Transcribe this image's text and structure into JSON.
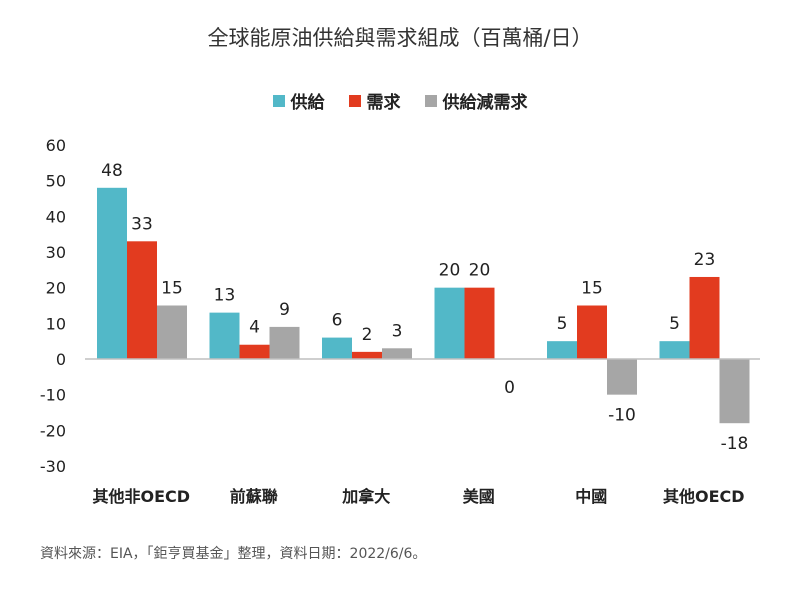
{
  "chart_data": {
    "type": "bar",
    "title": "全球能原油供給與需求組成（百萬桶/日）",
    "categories": [
      "其他非OECD",
      "前蘇聯",
      "加拿大",
      "美國",
      "中國",
      "其他OECD"
    ],
    "series": [
      {
        "name": "供給",
        "color": "#52B8C8",
        "values": [
          48,
          13,
          6,
          20,
          5,
          5
        ]
      },
      {
        "name": "需求",
        "color": "#E23B1F",
        "values": [
          33,
          4,
          2,
          20,
          15,
          23
        ]
      },
      {
        "name": "供給減需求",
        "color": "#A6A6A6",
        "values": [
          15,
          9,
          3,
          0,
          -10,
          -18
        ]
      }
    ],
    "ylim": [
      -30,
      60
    ],
    "yticks": [
      60,
      50,
      40,
      30,
      20,
      10,
      0,
      -10,
      -20,
      -30
    ],
    "ytick_labels": [
      "60",
      "50",
      "40",
      "30",
      "20",
      "10",
      "0",
      "-10",
      "-20",
      "-30"
    ],
    "data_labels": [
      [
        "48",
        "13",
        "6",
        "20",
        "5",
        "5"
      ],
      [
        "33",
        "4",
        "2",
        "20",
        "15",
        "23"
      ],
      [
        "15",
        "9",
        "3",
        "0",
        "-10",
        "-18"
      ]
    ],
    "grid": false,
    "legend_position": "top-center"
  },
  "source_note": "資料來源：EIA，「鉅亨買基金」整理，資料日期：2022/6/6。"
}
